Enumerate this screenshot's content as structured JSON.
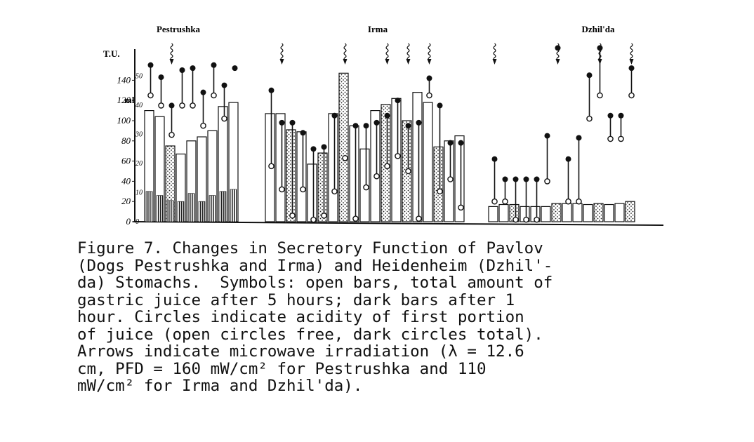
{
  "chart_data": {
    "type": "bar",
    "title": "",
    "groups": [
      "Pestrushka",
      "Irma",
      "Dzhil'da"
    ],
    "ylabel": "T.U.",
    "ylabel2": "ml",
    "yticks": [
      0,
      20,
      40,
      60,
      80,
      100,
      120,
      140
    ],
    "yticks2": [
      "0",
      "10",
      "20",
      "30",
      "40",
      "50"
    ],
    "ylim": [
      0,
      160
    ],
    "bars": [
      {
        "g": 0,
        "total": 110,
        "hour1": 30,
        "dot": false,
        "open_circle": 125,
        "dark_circle": 155,
        "arrow": false
      },
      {
        "g": 0,
        "total": 104,
        "hour1": 26,
        "dot": false,
        "open_circle": 115,
        "dark_circle": 143,
        "arrow": false
      },
      {
        "g": 0,
        "total": 75,
        "hour1": 21,
        "dot": true,
        "open_circle": 86,
        "dark_circle": 115,
        "arrow": true
      },
      {
        "g": 0,
        "total": 67,
        "hour1": 20,
        "dot": false,
        "open_circle": 115,
        "dark_circle": 150,
        "arrow": false
      },
      {
        "g": 0,
        "total": 80,
        "hour1": 28,
        "dot": false,
        "open_circle": 115,
        "dark_circle": 152,
        "arrow": false
      },
      {
        "g": 0,
        "total": 84,
        "hour1": 20,
        "dot": false,
        "open_circle": 95,
        "dark_circle": 128,
        "arrow": false
      },
      {
        "g": 0,
        "total": 90,
        "hour1": 26,
        "dot": false,
        "open_circle": 125,
        "dark_circle": 155,
        "arrow": false
      },
      {
        "g": 0,
        "total": 114,
        "hour1": 30,
        "dot": false,
        "open_circle": 102,
        "dark_circle": 135,
        "arrow": false
      },
      {
        "g": 0,
        "total": 118,
        "hour1": 32,
        "dot": false,
        "open_circle": null,
        "dark_circle": 152,
        "arrow": false
      },
      {
        "g": 1,
        "total": 107,
        "hour1": null,
        "dot": false,
        "open_circle": 55,
        "dark_circle": 130,
        "arrow": false
      },
      {
        "g": 1,
        "total": 107,
        "hour1": null,
        "dot": false,
        "open_circle": 32,
        "dark_circle": 98,
        "arrow": true
      },
      {
        "g": 1,
        "total": 91,
        "hour1": null,
        "dot": true,
        "open_circle": 6,
        "dark_circle": 98,
        "arrow": false
      },
      {
        "g": 1,
        "total": 89,
        "hour1": null,
        "dot": false,
        "open_circle": 32,
        "dark_circle": 88,
        "arrow": false
      },
      {
        "g": 1,
        "total": 57,
        "hour1": null,
        "dot": false,
        "open_circle": 2,
        "dark_circle": 72,
        "arrow": false
      },
      {
        "g": 1,
        "total": 68,
        "hour1": null,
        "dot": true,
        "open_circle": 6,
        "dark_circle": 74,
        "arrow": false
      },
      {
        "g": 1,
        "total": 107,
        "hour1": null,
        "dot": false,
        "open_circle": 30,
        "dark_circle": 105,
        "arrow": false
      },
      {
        "g": 1,
        "total": 147,
        "hour1": null,
        "dot": true,
        "open_circle": 63,
        "dark_circle": null,
        "arrow": true
      },
      {
        "g": 1,
        "total": 95,
        "hour1": null,
        "dot": false,
        "open_circle": 3,
        "dark_circle": 95,
        "arrow": false
      },
      {
        "g": 1,
        "total": 72,
        "hour1": null,
        "dot": false,
        "open_circle": 34,
        "dark_circle": 95,
        "arrow": false
      },
      {
        "g": 1,
        "total": 110,
        "hour1": null,
        "dot": false,
        "open_circle": 45,
        "dark_circle": 98,
        "arrow": false
      },
      {
        "g": 1,
        "total": 116,
        "hour1": null,
        "dot": true,
        "open_circle": 55,
        "dark_circle": 105,
        "arrow": true
      },
      {
        "g": 1,
        "total": 122,
        "hour1": null,
        "dot": false,
        "open_circle": 65,
        "dark_circle": 120,
        "arrow": false
      },
      {
        "g": 1,
        "total": 100,
        "hour1": null,
        "dot": true,
        "open_circle": 50,
        "dark_circle": 95,
        "arrow": true
      },
      {
        "g": 1,
        "total": 128,
        "hour1": null,
        "dot": false,
        "open_circle": 3,
        "dark_circle": 98,
        "arrow": false
      },
      {
        "g": 1,
        "total": 118,
        "hour1": null,
        "dot": false,
        "open_circle": 125,
        "dark_circle": 142,
        "arrow": true
      },
      {
        "g": 1,
        "total": 74,
        "hour1": null,
        "dot": true,
        "open_circle": 30,
        "dark_circle": 115,
        "arrow": false
      },
      {
        "g": 1,
        "total": 80,
        "hour1": null,
        "dot": false,
        "open_circle": 42,
        "dark_circle": 78,
        "arrow": false
      },
      {
        "g": 1,
        "total": 85,
        "hour1": null,
        "dot": false,
        "open_circle": 14,
        "dark_circle": 78,
        "arrow": false
      },
      {
        "g": 2,
        "total": 15,
        "hour1": null,
        "dot": false,
        "open_circle": 20,
        "dark_circle": 62,
        "arrow": true
      },
      {
        "g": 2,
        "total": 17,
        "hour1": null,
        "dot": false,
        "open_circle": 20,
        "dark_circle": 42,
        "arrow": false
      },
      {
        "g": 2,
        "total": 17,
        "hour1": null,
        "dot": true,
        "open_circle": 2,
        "dark_circle": 42,
        "arrow": false
      },
      {
        "g": 2,
        "total": 15,
        "hour1": null,
        "dot": false,
        "open_circle": 2,
        "dark_circle": 42,
        "arrow": false
      },
      {
        "g": 2,
        "total": 15,
        "hour1": null,
        "dot": false,
        "open_circle": 2,
        "dark_circle": 42,
        "arrow": false
      },
      {
        "g": 2,
        "total": 15,
        "hour1": null,
        "dot": false,
        "open_circle": 40,
        "dark_circle": 85,
        "arrow": false
      },
      {
        "g": 2,
        "total": 18,
        "hour1": null,
        "dot": true,
        "open_circle": null,
        "dark_circle": 172,
        "arrow": true
      },
      {
        "g": 2,
        "total": 18,
        "hour1": null,
        "dot": false,
        "open_circle": 20,
        "dark_circle": 62,
        "arrow": false
      },
      {
        "g": 2,
        "total": 18,
        "hour1": null,
        "dot": false,
        "open_circle": 20,
        "dark_circle": 83,
        "arrow": false
      },
      {
        "g": 2,
        "total": 17,
        "hour1": null,
        "dot": false,
        "open_circle": 102,
        "dark_circle": 145,
        "arrow": false
      },
      {
        "g": 2,
        "total": 18,
        "hour1": null,
        "dot": true,
        "open_circle": 125,
        "dark_circle": 172,
        "arrow": true
      },
      {
        "g": 2,
        "total": 17,
        "hour1": null,
        "dot": false,
        "open_circle": 82,
        "dark_circle": 105,
        "arrow": false
      },
      {
        "g": 2,
        "total": 18,
        "hour1": null,
        "dot": false,
        "open_circle": 82,
        "dark_circle": 105,
        "arrow": false
      },
      {
        "g": 2,
        "total": 20,
        "hour1": null,
        "dot": true,
        "open_circle": 125,
        "dark_circle": 152,
        "arrow": true
      }
    ]
  },
  "caption": {
    "lines": [
      "Figure 7. Changes in Secretory Function of Pavlov",
      "(Dogs Pestrushka and Irma) and Heidenheim (Dzhil'-",
      "da) Stomachs.  Symbols: open bars, total amount of",
      "gastric juice after 5 hours; dark bars after 1",
      "hour. Circles indicate acidity of first portion",
      "of juice (open circles free, dark circles total).",
      "Arrows indicate microwave irradiation (λ = 12.6",
      "cm, PFD = 160 mW/cm² for Pestrushka and 110",
      "mW/cm² for Irma and Dzhil'da)."
    ]
  }
}
